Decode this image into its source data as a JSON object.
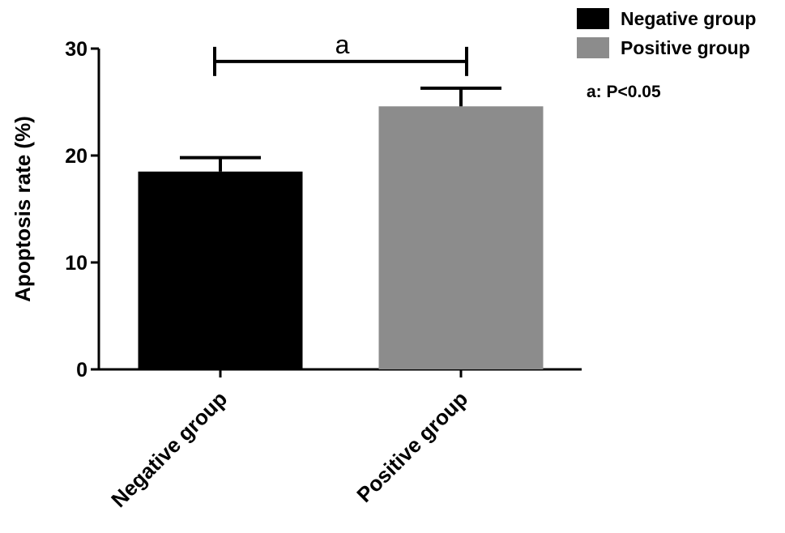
{
  "chart_data": {
    "type": "bar",
    "categories": [
      "Negative group",
      "Positive group"
    ],
    "values": [
      18.5,
      24.6
    ],
    "error_upper": [
      19.8,
      26.3
    ],
    "colors": [
      "#000000",
      "#8c8c8c"
    ],
    "ylabel": "Apoptosis rate (%)",
    "xlabel": "",
    "ylim": [
      0,
      30
    ],
    "yticks": [
      0,
      10,
      20,
      30
    ],
    "grid": false,
    "legend": {
      "placement": "top-right",
      "entries": [
        {
          "label": "Negative group",
          "color": "#000000"
        },
        {
          "label": "Positive group",
          "color": "#8c8c8c"
        }
      ]
    },
    "significance": {
      "label": "a",
      "from": "Negative group",
      "to": "Positive group",
      "y": 28.8
    },
    "annotation": "a: P<0.05"
  }
}
